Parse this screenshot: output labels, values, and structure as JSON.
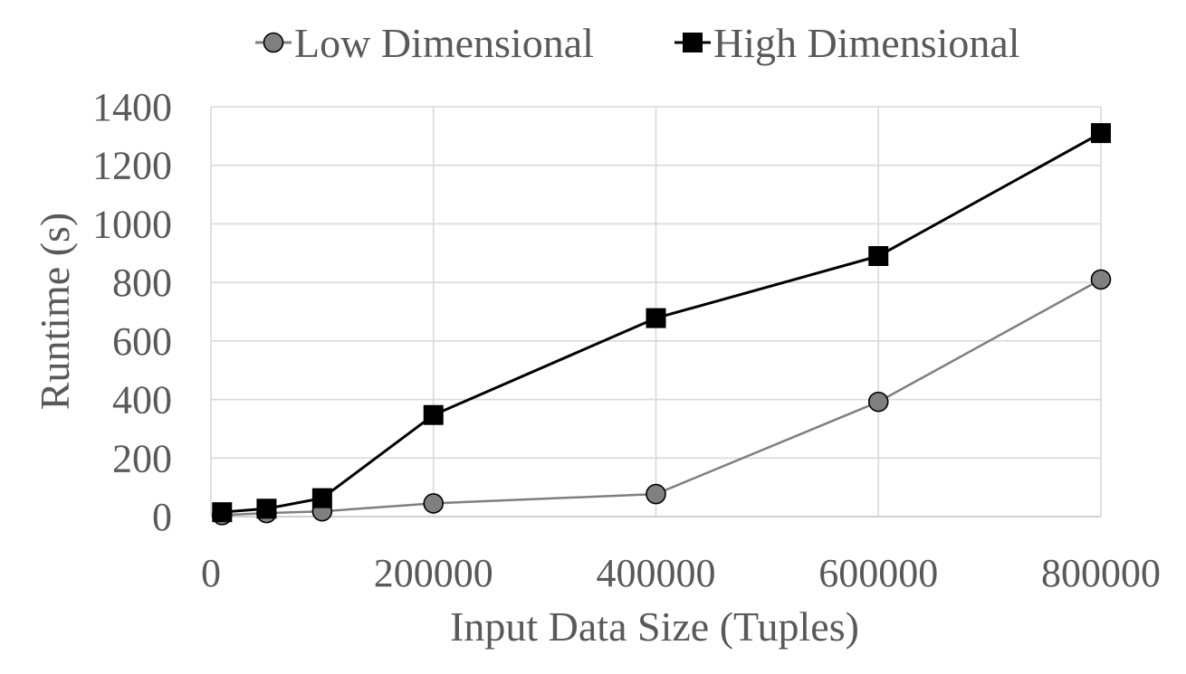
{
  "chart_data": {
    "type": "line",
    "xlabel": "Input Data Size (Tuples)",
    "ylabel": "Runtime (s)",
    "xlim": [
      0,
      800000
    ],
    "ylim": [
      0,
      1400
    ],
    "x_ticks": [
      0,
      200000,
      400000,
      600000,
      800000
    ],
    "x_tick_labels": [
      "0",
      "200000",
      "400000",
      "600000",
      "800000"
    ],
    "y_ticks": [
      0,
      200,
      400,
      600,
      800,
      1000,
      1200,
      1400
    ],
    "y_tick_labels": [
      "0",
      "200",
      "400",
      "600",
      "800",
      "1000",
      "1200",
      "1400"
    ],
    "grid": true,
    "legend_position": "top-center",
    "series": [
      {
        "name": "Low Dimensional",
        "marker": "circle",
        "color": "#7f7f7f",
        "marker_fill": "#808080",
        "x": [
          10000,
          50000,
          100000,
          200000,
          400000,
          600000,
          800000
        ],
        "y": [
          5,
          12,
          18,
          45,
          77,
          392,
          810
        ]
      },
      {
        "name": "High Dimensional",
        "marker": "square",
        "color": "#000000",
        "marker_fill": "#000000",
        "x": [
          10000,
          50000,
          100000,
          200000,
          400000,
          600000,
          800000
        ],
        "y": [
          15,
          27,
          63,
          347,
          678,
          890,
          1310
        ]
      }
    ]
  }
}
